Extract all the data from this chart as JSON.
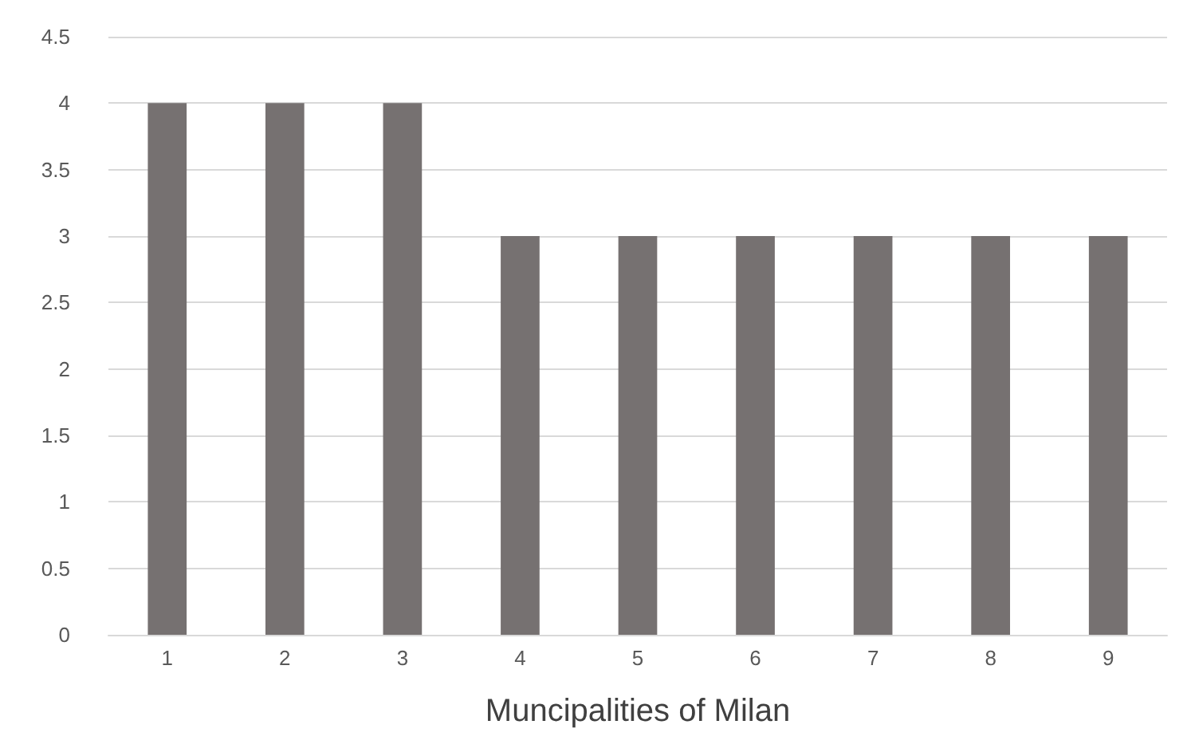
{
  "chart_data": {
    "type": "bar",
    "xlabel": "Muncipalities of Milan",
    "categories": [
      "1",
      "2",
      "3",
      "4",
      "5",
      "6",
      "7",
      "8",
      "9"
    ],
    "values": [
      4,
      4,
      4,
      3,
      3,
      3,
      3,
      3,
      3
    ],
    "color": "#767171",
    "ylim": [
      0,
      4.5
    ],
    "yticks": [
      0,
      0.5,
      1,
      1.5,
      2,
      2.5,
      3,
      3.5,
      4,
      4.5
    ],
    "grid": "y"
  }
}
